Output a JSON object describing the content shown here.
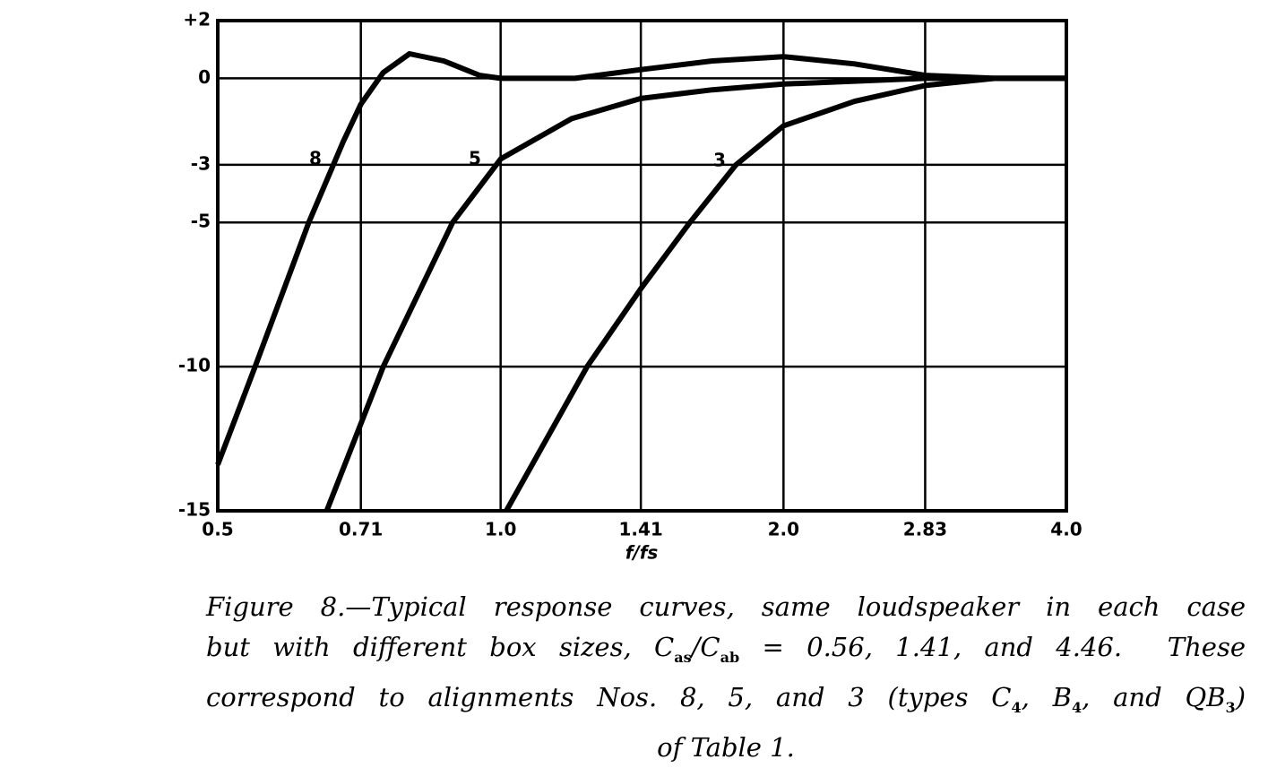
{
  "chart_data": {
    "type": "line",
    "xlabel": "f/fs",
    "xlog": true,
    "xlim": [
      0.5,
      4.0
    ],
    "xticks": [
      0.5,
      0.71,
      {
        "value": 1,
        "label": "1.0"
      },
      1.41,
      {
        "value": 2,
        "label": "2.0"
      },
      2.83,
      {
        "value": 4,
        "label": "4.0"
      }
    ],
    "ylim": [
      -15,
      2
    ],
    "yticks": [
      {
        "value": 2,
        "label": "+2"
      },
      0,
      -3,
      -5,
      -10,
      -15
    ],
    "grid": true,
    "series": [
      {
        "name": "8",
        "color": "#000000",
        "x": [
          0.5,
          0.548,
          0.625,
          0.68,
          0.71,
          0.75,
          0.8,
          0.87,
          0.95,
          1.0,
          1.1,
          1.2,
          1.41,
          1.68,
          2.0,
          2.38,
          2.83,
          3.36,
          4.0
        ],
        "values": [
          -13.4,
          -10,
          -5,
          -2.2,
          -0.9,
          0.2,
          0.85,
          0.6,
          0.1,
          0,
          0,
          0,
          0.3,
          0.6,
          0.75,
          0.5,
          0.1,
          0,
          0
        ]
      },
      {
        "name": "5",
        "color": "#000000",
        "x": [
          0.653,
          0.75,
          0.889,
          1.0,
          1.19,
          1.41,
          1.68,
          2.0,
          2.83,
          4.0
        ],
        "values": [
          -15,
          -10,
          -5,
          -2.8,
          -1.4,
          -0.7,
          -0.4,
          -0.2,
          0,
          0
        ]
      },
      {
        "name": "3",
        "color": "#000000",
        "x": [
          1.014,
          1.236,
          1.41,
          1.59,
          1.78,
          2.0,
          2.38,
          2.83,
          3.36,
          4.0
        ],
        "values": [
          -15,
          -10,
          -7.3,
          -5,
          -3,
          -1.65,
          -0.8,
          -0.25,
          0,
          0
        ]
      }
    ],
    "caption": [
      [
        "Figure 8.—Typical response curves, same loudspeaker in each case"
      ],
      [
        "but with different box sizes, C",
        "as",
        "/C",
        "ab",
        " = 0.56, 1.41, and 4.46.  These"
      ],
      [
        "correspond to alignments Nos. 8, 5, and 3 (types C",
        "4",
        ", B",
        "4",
        ", and QB",
        "3",
        ")"
      ],
      [
        "of Table 1."
      ]
    ]
  }
}
